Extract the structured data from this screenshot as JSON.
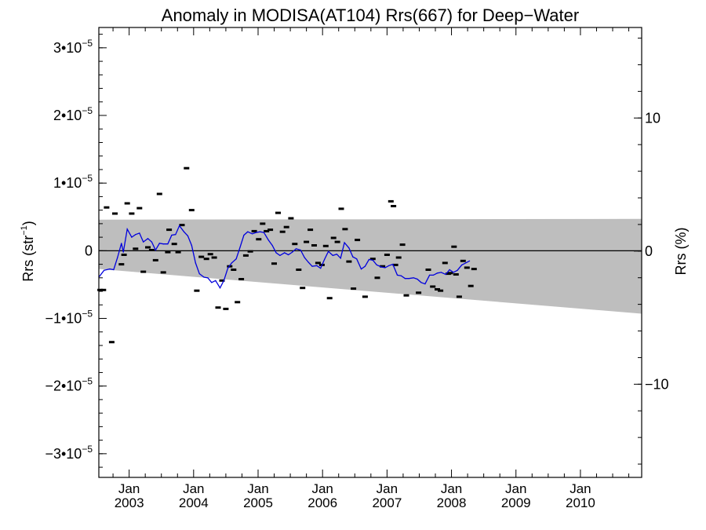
{
  "chart_data": {
    "type": "scatter",
    "title": "Anomaly in MODISA(AT104) Rrs(667) for Deep−Water",
    "ylabel_left_base": "Rrs (str",
    "ylabel_left_sup": "−1",
    "ylabel_left_tail": ")",
    "ylabel_right": "Rrs (%)",
    "xlim": [
      2002.53,
      2010.95
    ],
    "ylim": [
      -3.35e-05,
      3.3e-05
    ],
    "ylim_right_percent": [
      -17.0,
      16.8
    ],
    "grid": false,
    "legend": "none",
    "y_ticks_left": [
      {
        "value": 3e-05,
        "base": "3•10",
        "exp": "−5"
      },
      {
        "value": 2e-05,
        "base": "2•10",
        "exp": "−5"
      },
      {
        "value": 1e-05,
        "base": "1•10",
        "exp": "−5"
      },
      {
        "value": 0,
        "base": "0",
        "exp": ""
      },
      {
        "value": -1e-05,
        "base": "−1•10",
        "exp": "−5"
      },
      {
        "value": -2e-05,
        "base": "−2•10",
        "exp": "−5"
      },
      {
        "value": -3e-05,
        "base": "−3•10",
        "exp": "−5"
      }
    ],
    "y_ticks_right": [
      {
        "value": 10,
        "label": "10"
      },
      {
        "value": 0,
        "label": "0"
      },
      {
        "value": -10,
        "label": "−10"
      }
    ],
    "x_ticks": [
      {
        "value": 2003.0,
        "month": "Jan",
        "year": "2003"
      },
      {
        "value": 2004.0,
        "month": "Jan",
        "year": "2004"
      },
      {
        "value": 2005.0,
        "month": "Jan",
        "year": "2005"
      },
      {
        "value": 2006.0,
        "month": "Jan",
        "year": "2006"
      },
      {
        "value": 2007.0,
        "month": "Jan",
        "year": "2007"
      },
      {
        "value": 2008.0,
        "month": "Jan",
        "year": "2008"
      },
      {
        "value": 2009.0,
        "month": "Jan",
        "year": "2009"
      },
      {
        "value": 2010.0,
        "month": "Jan",
        "year": "2010"
      }
    ],
    "band": {
      "color": "#bebebe",
      "upper": [
        [
          2002.53,
          4.6e-06
        ],
        [
          2010.95,
          4.7e-06
        ]
      ],
      "lower": [
        [
          2002.53,
          -2.7e-06
        ],
        [
          2010.95,
          -9.3e-06
        ]
      ]
    },
    "zero_line": 0,
    "points_color": "#000000",
    "points": [
      [
        2002.55,
        -5.8e-06
      ],
      [
        2002.6,
        -5.8e-06
      ],
      [
        2002.65,
        6.4e-06
      ],
      [
        2002.73,
        -1.35e-05
      ],
      [
        2002.78,
        5.5e-06
      ],
      [
        2002.88,
        -2e-06
      ],
      [
        2002.92,
        -6e-07
      ],
      [
        2002.97,
        7e-06
      ],
      [
        2003.04,
        5.5e-06
      ],
      [
        2003.1,
        3e-07
      ],
      [
        2003.16,
        6.3e-06
      ],
      [
        2003.22,
        -3.1e-06
      ],
      [
        2003.29,
        5e-07
      ],
      [
        2003.35,
        1e-07
      ],
      [
        2003.41,
        -1.4e-06
      ],
      [
        2003.47,
        8.4e-06
      ],
      [
        2003.53,
        -3.2e-06
      ],
      [
        2003.6,
        -2e-07
      ],
      [
        2003.62,
        3.1e-06
      ],
      [
        2003.7,
        1e-06
      ],
      [
        2003.76,
        -2e-07
      ],
      [
        2003.82,
        3.8e-06
      ],
      [
        2003.89,
        1.22e-05
      ],
      [
        2003.97,
        6e-06
      ],
      [
        2004.05,
        -5.9e-06
      ],
      [
        2004.12,
        -9e-07
      ],
      [
        2004.2,
        -1.2e-06
      ],
      [
        2004.26,
        -5e-07
      ],
      [
        2004.32,
        -1e-06
      ],
      [
        2004.38,
        -8.4e-06
      ],
      [
        2004.44,
        -4.4e-06
      ],
      [
        2004.5,
        -8.6e-06
      ],
      [
        2004.56,
        -2.3e-06
      ],
      [
        2004.62,
        -2.8e-06
      ],
      [
        2004.68,
        -7.6e-06
      ],
      [
        2004.74,
        -4.2e-06
      ],
      [
        2004.81,
        -7e-07
      ],
      [
        2004.88,
        -1e-07
      ],
      [
        2004.94,
        2.9e-06
      ],
      [
        2005.01,
        1.7e-06
      ],
      [
        2005.07,
        4e-06
      ],
      [
        2005.13,
        2.9e-06
      ],
      [
        2005.19,
        3.1e-06
      ],
      [
        2005.25,
        -1.9e-06
      ],
      [
        2005.31,
        5.6e-06
      ],
      [
        2005.38,
        2.8e-06
      ],
      [
        2005.44,
        3.5e-06
      ],
      [
        2005.51,
        4.8e-06
      ],
      [
        2005.57,
        1e-06
      ],
      [
        2005.63,
        -2.8e-06
      ],
      [
        2005.69,
        -5.5e-06
      ],
      [
        2005.75,
        1.3e-06
      ],
      [
        2005.81,
        3.1e-06
      ],
      [
        2005.87,
        8e-07
      ],
      [
        2005.93,
        -1.8e-06
      ],
      [
        2005.99,
        -2.1e-06
      ],
      [
        2006.05,
        7e-07
      ],
      [
        2006.11,
        -7e-06
      ],
      [
        2006.17,
        1.9e-06
      ],
      [
        2006.23,
        1.3e-06
      ],
      [
        2006.29,
        6.2e-06
      ],
      [
        2006.35,
        3.2e-06
      ],
      [
        2006.41,
        -1.6e-06
      ],
      [
        2006.48,
        -5.6e-06
      ],
      [
        2006.54,
        1.6e-06
      ],
      [
        2006.66,
        -6.8e-06
      ],
      [
        2006.78,
        -1.2e-06
      ],
      [
        2006.85,
        -4e-06
      ],
      [
        2006.93,
        -2.3e-06
      ],
      [
        2007.0,
        -6e-07
      ],
      [
        2007.06,
        7.3e-06
      ],
      [
        2007.1,
        6.6e-06
      ],
      [
        2007.13,
        -2.1e-06
      ],
      [
        2007.18,
        -1e-06
      ],
      [
        2007.24,
        9e-07
      ],
      [
        2007.3,
        -6.6e-06
      ],
      [
        2007.49,
        -6.2e-06
      ],
      [
        2007.64,
        -2.8e-06
      ],
      [
        2007.71,
        -5.3e-06
      ],
      [
        2007.78,
        -5.7e-06
      ],
      [
        2007.83,
        -5.9e-06
      ],
      [
        2007.9,
        -1.8e-06
      ],
      [
        2007.95,
        -3.4e-06
      ],
      [
        2007.98,
        -3.3e-06
      ],
      [
        2008.04,
        6e-07
      ],
      [
        2008.07,
        -3.5e-06
      ],
      [
        2008.12,
        -6.8e-06
      ],
      [
        2008.18,
        -1.5e-06
      ],
      [
        2008.24,
        -2.5e-06
      ],
      [
        2008.3,
        -5.2e-06
      ],
      [
        2008.35,
        -2.7e-06
      ]
    ],
    "series_color": "#0000dd",
    "series": [
      [
        2002.53,
        -3.9e-06
      ],
      [
        2002.61,
        -2.9e-06
      ],
      [
        2002.7,
        -2.7e-06
      ],
      [
        2002.76,
        -2.8e-06
      ],
      [
        2002.82,
        -1e-06
      ],
      [
        2002.88,
        1.1e-06
      ],
      [
        2002.91,
        -2e-07
      ],
      [
        2002.97,
        3.2e-06
      ],
      [
        2003.04,
        2e-06
      ],
      [
        2003.1,
        2.4e-06
      ],
      [
        2003.16,
        2.6e-06
      ],
      [
        2003.22,
        1.3e-06
      ],
      [
        2003.29,
        1.8e-06
      ],
      [
        2003.35,
        1.3e-06
      ],
      [
        2003.41,
        1e-07
      ],
      [
        2003.47,
        1.1e-06
      ],
      [
        2003.53,
        1e-06
      ],
      [
        2003.6,
        1e-06
      ],
      [
        2003.66,
        2.3e-06
      ],
      [
        2003.72,
        2.4e-06
      ],
      [
        2003.78,
        3.7e-06
      ],
      [
        2003.85,
        2.8e-06
      ],
      [
        2003.91,
        2.2e-06
      ],
      [
        2003.97,
        8e-07
      ],
      [
        2004.03,
        -1.8e-06
      ],
      [
        2004.09,
        -3.4e-06
      ],
      [
        2004.16,
        -3.9e-06
      ],
      [
        2004.22,
        -4e-06
      ],
      [
        2004.28,
        -4.7e-06
      ],
      [
        2004.34,
        -4.4e-06
      ],
      [
        2004.41,
        -5.5e-06
      ],
      [
        2004.47,
        -4.4e-06
      ],
      [
        2004.53,
        -2.6e-06
      ],
      [
        2004.59,
        -1.8e-06
      ],
      [
        2004.66,
        -1.2e-06
      ],
      [
        2004.72,
        5e-07
      ],
      [
        2004.78,
        2.3e-06
      ],
      [
        2004.84,
        2.8e-06
      ],
      [
        2004.91,
        2.5e-06
      ],
      [
        2004.97,
        2.7e-06
      ],
      [
        2005.03,
        2.8e-06
      ],
      [
        2005.09,
        2.7e-06
      ],
      [
        2005.16,
        1.6e-06
      ],
      [
        2005.22,
        8e-07
      ],
      [
        2005.28,
        -3e-07
      ],
      [
        2005.34,
        -7e-07
      ],
      [
        2005.41,
        -3e-07
      ],
      [
        2005.47,
        -6e-07
      ],
      [
        2005.53,
        -2e-07
      ],
      [
        2005.59,
        3e-07
      ],
      [
        2005.66,
        1e-07
      ],
      [
        2005.72,
        -1e-06
      ],
      [
        2005.78,
        -1.7e-06
      ],
      [
        2005.84,
        -2.3e-06
      ],
      [
        2005.91,
        -2.2e-06
      ],
      [
        2005.97,
        -2.6e-06
      ],
      [
        2006.03,
        -1.3e-06
      ],
      [
        2006.09,
        -1e-07
      ],
      [
        2006.16,
        -7e-07
      ],
      [
        2006.22,
        -5e-07
      ],
      [
        2006.28,
        -1.1e-06
      ],
      [
        2006.34,
        1.2e-06
      ],
      [
        2006.41,
        4e-07
      ],
      [
        2006.47,
        -9e-07
      ],
      [
        2006.53,
        -1.2e-06
      ],
      [
        2006.6,
        -2.7e-06
      ],
      [
        2006.66,
        -2.3e-06
      ],
      [
        2006.72,
        -1.3e-06
      ],
      [
        2006.78,
        -1.4e-06
      ],
      [
        2006.84,
        -2.1e-06
      ],
      [
        2006.91,
        -2.4e-06
      ],
      [
        2006.97,
        -2.5e-06
      ],
      [
        2007.03,
        -2.2e-06
      ],
      [
        2007.09,
        -2e-06
      ],
      [
        2007.16,
        -3.6e-06
      ],
      [
        2007.22,
        -3.7e-06
      ],
      [
        2007.28,
        -4.1e-06
      ],
      [
        2007.34,
        -4.1e-06
      ],
      [
        2007.41,
        -4e-06
      ],
      [
        2007.47,
        -4.2e-06
      ],
      [
        2007.53,
        -4.7e-06
      ],
      [
        2007.59,
        -4.9e-06
      ],
      [
        2007.66,
        -3.6e-06
      ],
      [
        2007.72,
        -3.6e-06
      ],
      [
        2007.78,
        -3.3e-06
      ],
      [
        2007.84,
        -3.2e-06
      ],
      [
        2007.91,
        -3.5e-06
      ],
      [
        2007.97,
        -2.8e-06
      ],
      [
        2008.03,
        -3.2e-06
      ],
      [
        2008.09,
        -2.9e-06
      ],
      [
        2008.16,
        -2.1e-06
      ],
      [
        2008.22,
        -1.8e-06
      ],
      [
        2008.28,
        -1.5e-06
      ]
    ]
  }
}
